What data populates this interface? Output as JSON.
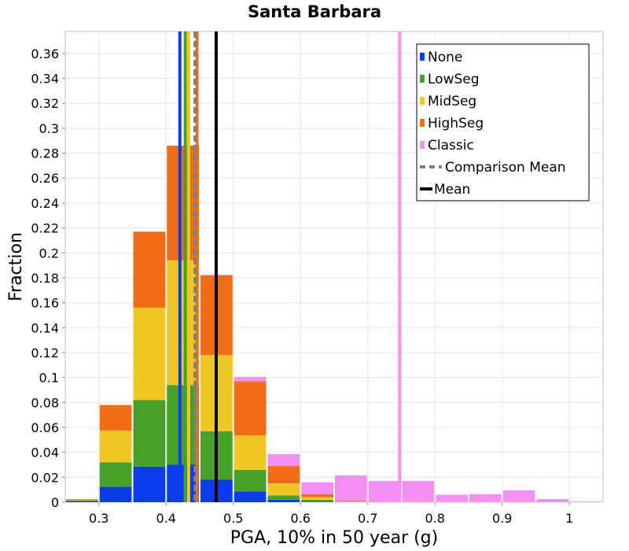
{
  "chart_data": {
    "type": "bar",
    "stacked": true,
    "title": "Santa Barbara",
    "xlabel": "PGA, 10% in 50 year (g)",
    "ylabel": "Fraction",
    "xlim": [
      0.25,
      1.05
    ],
    "ylim": [
      0,
      0.3776
    ],
    "xticks": [
      "0.3",
      "0.4",
      "0.5",
      "0.6",
      "0.7",
      "0.8",
      "0.9",
      "1"
    ],
    "yticks": [
      "0",
      "0.02",
      "0.04",
      "0.06",
      "0.08",
      "0.1",
      "0.12",
      "0.14",
      "0.16",
      "0.18",
      "0.2",
      "0.22",
      "0.24",
      "0.26",
      "0.28",
      "0.3",
      "0.32",
      "0.34",
      "0.36"
    ],
    "grid": true,
    "legend_position": "top-right",
    "bin_width": 0.05,
    "bins": [
      0.275,
      0.325,
      0.375,
      0.425,
      0.475,
      0.525,
      0.575,
      0.625,
      0.675,
      0.725,
      0.775,
      0.825,
      0.875,
      0.925,
      0.975,
      1.025
    ],
    "series": [
      {
        "name": "None",
        "color": "#0a3cf0",
        "values": [
          0.001,
          0.0125,
          0.0285,
          0.03,
          0.018,
          0.0085,
          0.002,
          0.0005,
          0,
          0,
          0,
          0,
          0,
          0,
          0,
          0
        ]
      },
      {
        "name": "LowSeg",
        "color": "#46a02a",
        "values": [
          0.0005,
          0.0195,
          0.0535,
          0.064,
          0.039,
          0.0175,
          0.0035,
          0.0015,
          0.0002,
          0,
          0,
          0,
          0,
          0,
          0,
          0
        ]
      },
      {
        "name": "MidSeg",
        "color": "#f0c826",
        "values": [
          0.0005,
          0.0255,
          0.074,
          0.1,
          0.061,
          0.0275,
          0.0095,
          0.002,
          0.0003,
          0,
          0,
          0,
          0,
          0,
          0,
          0
        ]
      },
      {
        "name": "HighSeg",
        "color": "#f06c16",
        "values": [
          0.0005,
          0.0205,
          0.061,
          0.092,
          0.064,
          0.0435,
          0.014,
          0.0025,
          0.0005,
          0,
          0,
          0,
          0,
          0,
          0,
          0
        ]
      },
      {
        "name": "Classic",
        "color": "#f490f4",
        "values": [
          0,
          0,
          0,
          0,
          0.0005,
          0.0035,
          0.0095,
          0.0095,
          0.0205,
          0.017,
          0.017,
          0.006,
          0.0065,
          0.0095,
          0.0025,
          0.0005
        ]
      }
    ],
    "vertical_lines": [
      {
        "series": "None",
        "x": 0.4205,
        "color": "#0a3cf0",
        "style": "solid"
      },
      {
        "series": "LowSeg",
        "x": 0.4285,
        "color": "#46a02a",
        "style": "solid"
      },
      {
        "series": "MidSeg",
        "x": 0.4335,
        "color": "#f0c826",
        "style": "solid"
      },
      {
        "series": "HighSeg",
        "x": 0.446,
        "color": "#f06c16",
        "style": "solid"
      },
      {
        "series": "Comparison Mean",
        "x": 0.443,
        "color": "#808080",
        "style": "dashed"
      },
      {
        "series": "Mean",
        "x": 0.4745,
        "color": "#000000",
        "style": "solid"
      },
      {
        "series": "Classic",
        "x": 0.7475,
        "color": "#f490f4",
        "style": "solid"
      }
    ],
    "legend": [
      {
        "label": "None",
        "color": "#0a3cf0",
        "kind": "bar"
      },
      {
        "label": "LowSeg",
        "color": "#46a02a",
        "kind": "bar"
      },
      {
        "label": "MidSeg",
        "color": "#f0c826",
        "kind": "bar"
      },
      {
        "label": "HighSeg",
        "color": "#f06c16",
        "kind": "bar"
      },
      {
        "label": "Classic",
        "color": "#f490f4",
        "kind": "bar"
      },
      {
        "label": "Comparison Mean",
        "color": "#808080",
        "kind": "dashed"
      },
      {
        "label": "Mean",
        "color": "#000000",
        "kind": "line"
      }
    ]
  }
}
